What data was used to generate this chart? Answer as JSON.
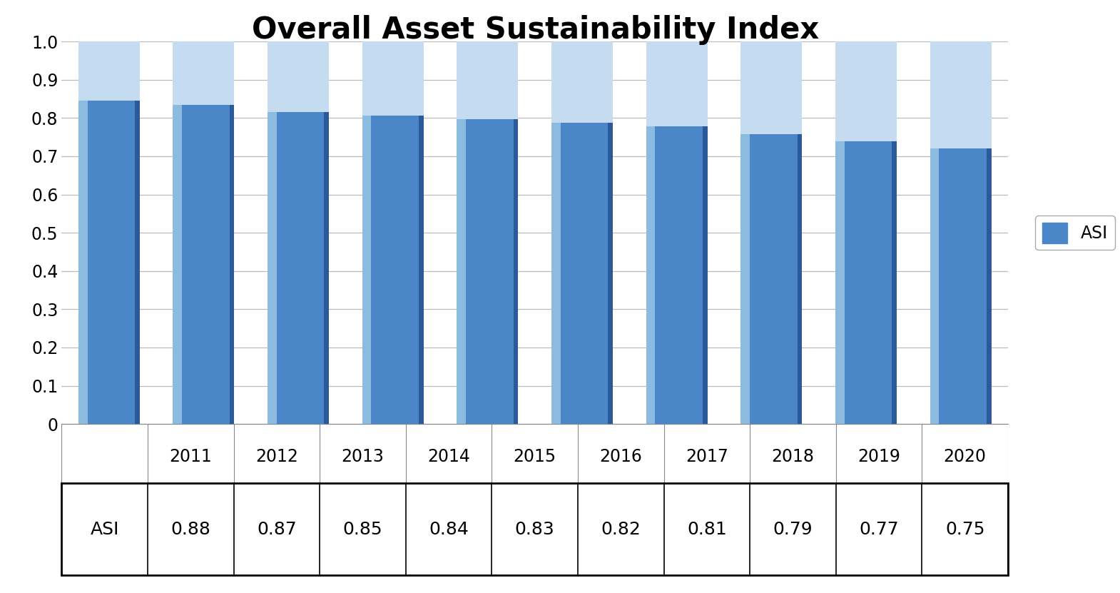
{
  "title": "Overall Asset Sustainability Index",
  "years": [
    "2011",
    "2012",
    "2013",
    "2014",
    "2015",
    "2016",
    "2017",
    "2018",
    "2019",
    "2020"
  ],
  "values": [
    0.88,
    0.87,
    0.85,
    0.84,
    0.83,
    0.82,
    0.81,
    0.79,
    0.77,
    0.75
  ],
  "bar_color_main": "#4A86C8",
  "bar_color_light": "#8BBCE0",
  "bar_color_dark": "#2A5A9A",
  "bar_color_top": "#C5DCF0",
  "ylim": [
    0,
    1.0
  ],
  "yticks": [
    0,
    0.1,
    0.2,
    0.3,
    0.4,
    0.5,
    0.6,
    0.7,
    0.8,
    0.9,
    1.0
  ],
  "legend_label": "ASI",
  "title_fontsize": 30,
  "tick_fontsize": 17,
  "table_fontsize": 16,
  "year_row_fontsize": 17,
  "background_color": "#FFFFFF",
  "grid_color": "#BBBBBB",
  "table_row_label": "ASI",
  "border_color": "#000000"
}
